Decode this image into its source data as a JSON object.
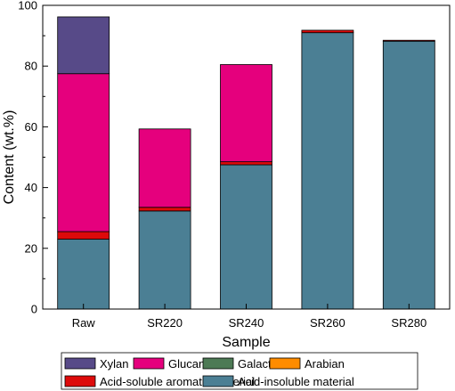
{
  "chart_data": {
    "type": "bar",
    "stacked": true,
    "title": "",
    "xlabel": "Sample",
    "ylabel": "Content (wt.%)",
    "ylim": [
      0,
      100
    ],
    "yticks": [
      0,
      20,
      40,
      60,
      80,
      100
    ],
    "grid": false,
    "legend_position": "bottom",
    "categories": [
      "Raw",
      "SR220",
      "SR240",
      "SR260",
      "SR280"
    ],
    "series": [
      {
        "name": "Acid-insoluble material",
        "color": "#4b7f94",
        "values": [
          23.0,
          32.3,
          47.5,
          91.0,
          88.2
        ]
      },
      {
        "name": "Acid-soluble aromatic material",
        "color": "#dd0a0a",
        "values": [
          2.5,
          1.2,
          1.0,
          0.8,
          0.3
        ]
      },
      {
        "name": "Glucan",
        "color": "#e5007d",
        "values": [
          52.0,
          25.8,
          32.0,
          0,
          0
        ]
      },
      {
        "name": "Galactan",
        "color": "#4d7a55",
        "values": [
          0,
          0,
          0,
          0,
          0
        ]
      },
      {
        "name": "Arabian",
        "color": "#ff8c00",
        "values": [
          0,
          0,
          0,
          0,
          0
        ]
      },
      {
        "name": "Xylan",
        "color": "#574a88",
        "values": [
          18.7,
          0,
          0,
          0,
          0
        ]
      }
    ],
    "legend_order": [
      "Xylan",
      "Glucan",
      "Galactan",
      "Arabian",
      "Acid-soluble aromatic material",
      "Acid-insoluble material"
    ]
  }
}
